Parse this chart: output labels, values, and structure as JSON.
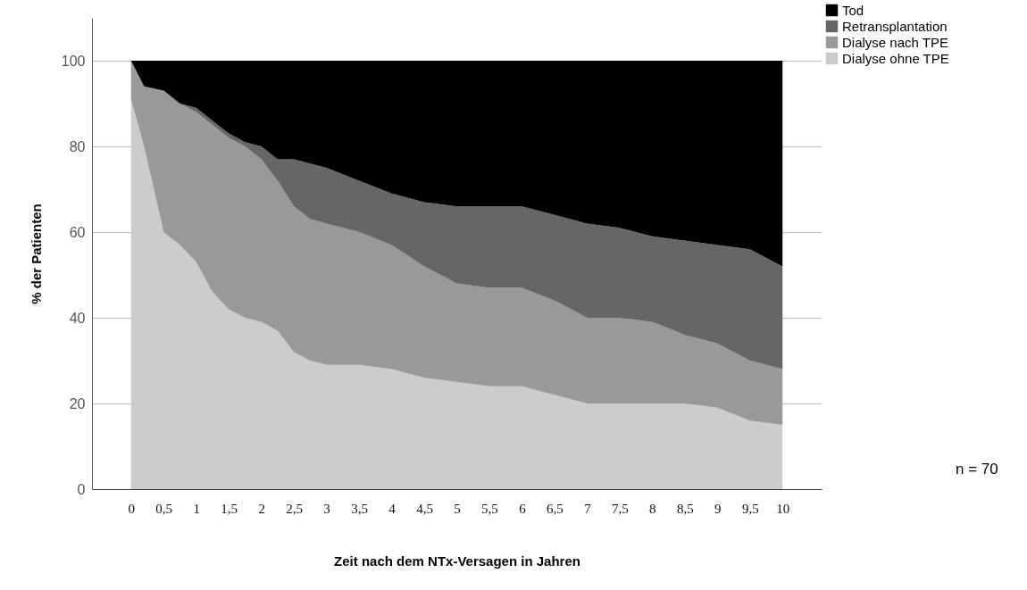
{
  "chart_data": {
    "type": "area",
    "stacked": true,
    "xlabel": "Zeit nach dem NTx-Versagen in Jahren",
    "ylabel": "% der Patienten",
    "x": [
      0,
      0.2,
      0.5,
      0.75,
      1,
      1.25,
      1.5,
      1.75,
      2,
      2.25,
      2.5,
      2.75,
      3,
      3.5,
      4,
      4.5,
      5,
      5.5,
      6,
      6.5,
      7,
      7.5,
      8,
      8.5,
      9,
      9.5,
      10
    ],
    "series": [
      {
        "name": "Dialyse ohne TPE",
        "color": "#cccccc",
        "values": [
          91,
          80,
          60,
          57,
          53,
          46,
          42,
          40,
          39,
          37,
          32,
          30,
          29,
          29,
          28,
          26,
          25,
          24,
          24,
          22,
          20,
          20,
          20,
          20,
          19,
          16,
          15
        ]
      },
      {
        "name": "Dialyse nach TPE",
        "color": "#999999",
        "values": [
          9,
          14,
          33,
          33,
          35,
          39,
          40,
          40,
          38,
          35,
          34,
          33,
          33,
          31,
          29,
          26,
          23,
          23,
          23,
          22,
          20,
          20,
          19,
          16,
          15,
          14,
          13
        ]
      },
      {
        "name": "Retransplantation",
        "color": "#666666",
        "values": [
          0,
          0,
          0,
          0,
          1,
          1,
          1,
          1,
          3,
          5,
          11,
          13,
          13,
          12,
          12,
          15,
          18,
          19,
          19,
          20,
          22,
          21,
          20,
          22,
          23,
          26,
          24
        ]
      },
      {
        "name": "Tod",
        "color": "#000000",
        "values": [
          0,
          6,
          7,
          10,
          11,
          14,
          17,
          19,
          20,
          23,
          23,
          24,
          25,
          28,
          31,
          33,
          34,
          34,
          34,
          36,
          38,
          39,
          41,
          42,
          43,
          44,
          48
        ]
      }
    ],
    "xlim": [
      -0.6,
      10.6
    ],
    "xticks": [
      0,
      {
        "value": 0.5,
        "label": "0,5"
      },
      1,
      {
        "value": 1.5,
        "label": "1,5"
      },
      2,
      {
        "value": 2.5,
        "label": "2,5"
      },
      3,
      {
        "value": 3.5,
        "label": "3,5"
      },
      4,
      {
        "value": 4.5,
        "label": "4,5"
      },
      5,
      {
        "value": 5.5,
        "label": "5,5"
      },
      6,
      {
        "value": 6.5,
        "label": "6,5"
      },
      7,
      {
        "value": 7.5,
        "label": "7,5"
      },
      8,
      {
        "value": 8.5,
        "label": "8,5"
      },
      9,
      {
        "value": 9.5,
        "label": "9,5"
      },
      10
    ],
    "ylim": [
      0,
      110
    ],
    "yticks": [
      0,
      20,
      40,
      60,
      80,
      100
    ],
    "grid": "y",
    "legend": "top right",
    "annotations": [
      "n = 70"
    ]
  }
}
